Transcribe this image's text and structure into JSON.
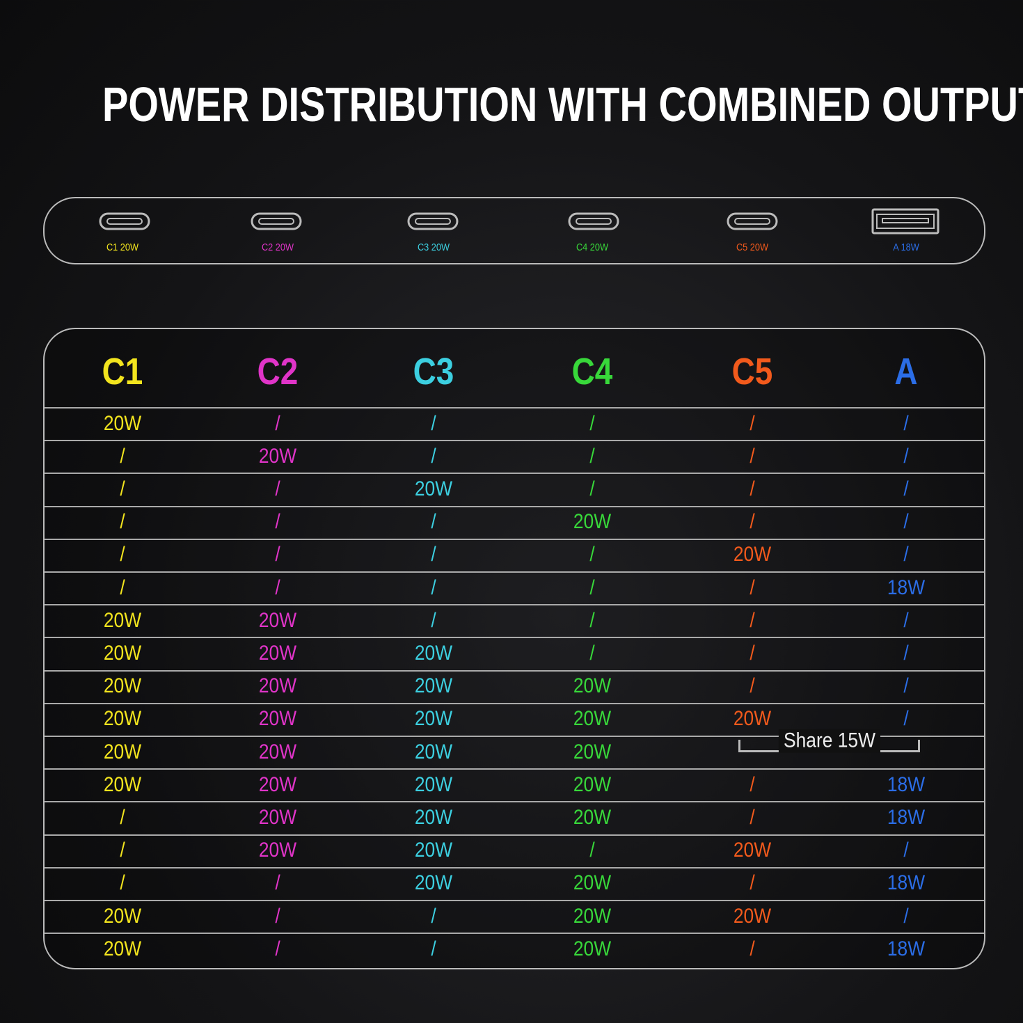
{
  "title": "POWER DISTRIBUTION WITH COMBINED OUTPUT",
  "ports": [
    "C1 20W",
    "C2 20W",
    "C3 20W",
    "C4 20W",
    "C5 20W",
    "A 18W"
  ],
  "colors": [
    "#f2e41e",
    "#e034c8",
    "#3ccfe0",
    "#38d83a",
    "#f25a1c",
    "#2b6de6"
  ],
  "table": {
    "headers": [
      "C1",
      "C2",
      "C3",
      "C4",
      "C5",
      "A"
    ],
    "rows": [
      [
        "20W",
        "/",
        "/",
        "/",
        "/",
        "/"
      ],
      [
        "/",
        "20W",
        "/",
        "/",
        "/",
        "/"
      ],
      [
        "/",
        "/",
        "20W",
        "/",
        "/",
        "/"
      ],
      [
        "/",
        "/",
        "/",
        "20W",
        "/",
        "/"
      ],
      [
        "/",
        "/",
        "/",
        "/",
        "20W",
        "/"
      ],
      [
        "/",
        "/",
        "/",
        "/",
        "/",
        "18W"
      ],
      [
        "20W",
        "20W",
        "/",
        "/",
        "/",
        "/"
      ],
      [
        "20W",
        "20W",
        "20W",
        "/",
        "/",
        "/"
      ],
      [
        "20W",
        "20W",
        "20W",
        "20W",
        "/",
        "/"
      ],
      [
        "20W",
        "20W",
        "20W",
        "20W",
        "20W",
        "/"
      ],
      [
        "20W",
        "20W",
        "20W",
        "20W",
        "Share 15W"
      ],
      [
        "20W",
        "20W",
        "20W",
        "20W",
        "/",
        "18W"
      ],
      [
        "/",
        "20W",
        "20W",
        "20W",
        "/",
        "18W"
      ],
      [
        "/",
        "20W",
        "20W",
        "/",
        "20W",
        "/"
      ],
      [
        "/",
        "/",
        "20W",
        "20W",
        "/",
        "18W"
      ],
      [
        "20W",
        "/",
        "/",
        "20W",
        "20W",
        "/"
      ],
      [
        "20W",
        "/",
        "/",
        "20W",
        "/",
        "18W"
      ]
    ]
  }
}
